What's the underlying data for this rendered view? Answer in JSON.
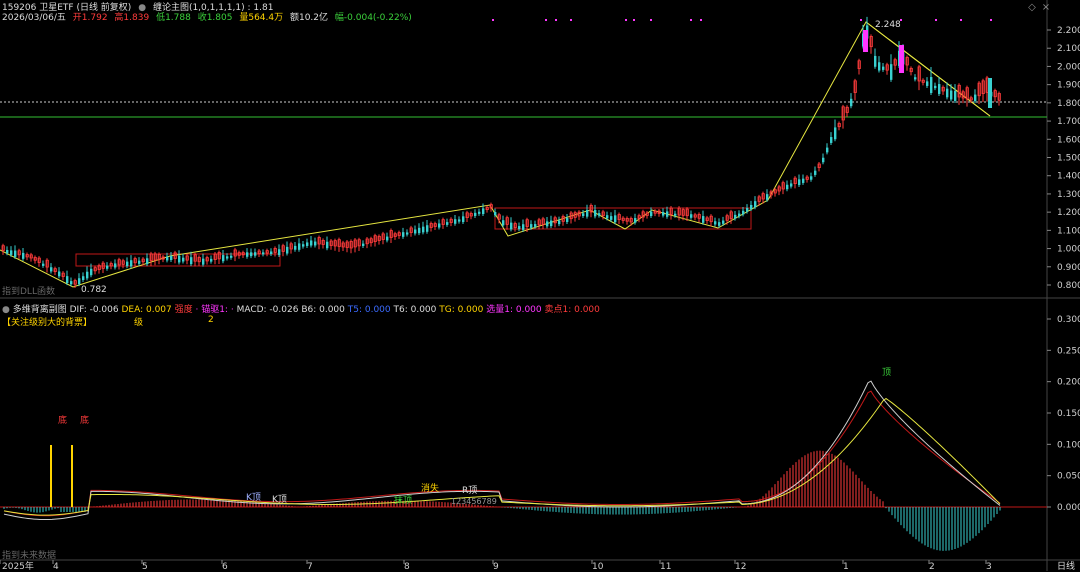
{
  "header": {
    "code_name": "159206 卫星ETF (日线 前复权)",
    "indicator": "缠论主图(1,0,1,1,1,1) : 1.81",
    "date": "2026/03/06/五",
    "open": "开1.792",
    "high": "高1.839",
    "low": "低1.788",
    "close": "收1.805",
    "volume": "量564.4万",
    "amount": "额10.2亿",
    "change": "幅-0.004(-0.22%)"
  },
  "main_chart": {
    "price_ticks": [
      "2.200",
      "2.100",
      "2.000",
      "1.900",
      "1.800",
      "1.700",
      "1.600",
      "1.500",
      "1.400",
      "1.300",
      "1.200",
      "1.100",
      "1.000",
      "0.900",
      "0.800"
    ],
    "high_label": "2.248",
    "low_label": "0.782",
    "watermark": "指到DLL函数",
    "colors": {
      "up": "#ff3b3b",
      "down": "#39d0d0",
      "zigzag": "#e6e640",
      "hline": "#35c035",
      "box": "#c01818"
    }
  },
  "sub_chart": {
    "title": "多维背离副图",
    "legend": [
      {
        "text": "DIF: -0.006",
        "color": "#dddddd"
      },
      {
        "text": "DEA: 0.007",
        "color": "#ffd400"
      },
      {
        "text": "强度",
        "color": "#ff3b3b"
      },
      {
        "text": "· 锚驱1: ·",
        "color": "#ff36ff"
      },
      {
        "text": "MACD: -0.026",
        "color": "#dddddd"
      },
      {
        "text": "B6: 0.000",
        "color": "#dddddd"
      },
      {
        "text": "T5: 0.000",
        "color": "#3b6bff"
      },
      {
        "text": "T6: 0.000",
        "color": "#dddddd"
      },
      {
        "text": "TG: 0.000",
        "color": "#ffd400"
      },
      {
        "text": "选量1: 0.000",
        "color": "#ff36ff"
      },
      {
        "text": "卖点1: 0.000",
        "color": "#ff3b3b"
      }
    ],
    "notice": "【关注级别大的背票】",
    "level_label": "级",
    "level_value": "2",
    "ticks": [
      "0.300",
      "0.250",
      "0.200",
      "0.150",
      "0.100",
      "0.050",
      "0.000"
    ],
    "annotations": {
      "red_signal_1": "底",
      "red_signal_2": "底",
      "k1": "K顶",
      "k2": "K顶",
      "bt": "抹顶",
      "yx": "消失",
      "r": "R顶",
      "seq": "123456789",
      "top_signal": "顶"
    },
    "watermark": "指到未来数据"
  },
  "time_axis": {
    "labels": [
      "2025年",
      "4",
      "5",
      "6",
      "7",
      "8",
      "9",
      "10",
      "11",
      "12",
      "1",
      "2",
      "3"
    ],
    "period": "日线"
  }
}
